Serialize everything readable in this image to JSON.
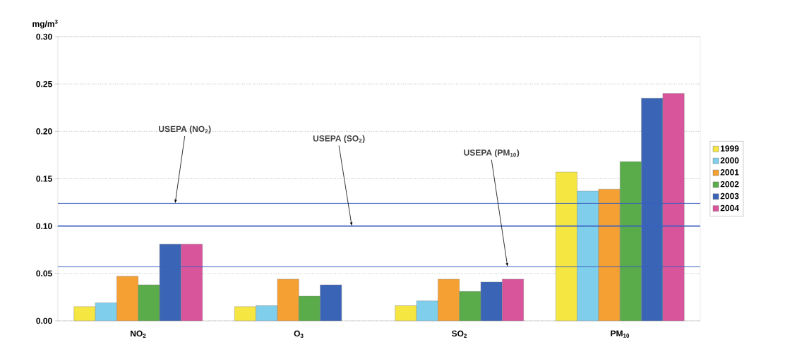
{
  "chart_data": {
    "type": "bar",
    "ylabel": "mg/m$^{3}$",
    "categories": [
      "NO$_{2}$",
      "O$_{3}$",
      "SO$_{2}$",
      "PM$_{10}$"
    ],
    "series": [
      {
        "name": "1999",
        "color": "#f5e642",
        "values": [
          0.015,
          0.015,
          0.016,
          0.157
        ]
      },
      {
        "name": "2000",
        "color": "#7fcfec",
        "values": [
          0.019,
          0.016,
          0.021,
          0.137
        ]
      },
      {
        "name": "2001",
        "color": "#f5a033",
        "values": [
          0.047,
          0.044,
          0.044,
          0.139
        ]
      },
      {
        "name": "2002",
        "color": "#5aab4a",
        "values": [
          0.038,
          0.026,
          0.031,
          0.168
        ]
      },
      {
        "name": "2003",
        "color": "#3a64b5",
        "values": [
          0.081,
          0.038,
          0.041,
          0.235
        ]
      },
      {
        "name": "2004",
        "color": "#d9559b",
        "values": [
          0.081,
          null,
          0.044,
          0.24
        ]
      }
    ],
    "ylim": [
      0,
      0.3
    ],
    "yticks": [
      {
        "value": 0,
        "label": "0.00"
      },
      {
        "value": 0.05,
        "label": "0.05"
      },
      {
        "value": 0.1,
        "label": "0.10"
      },
      {
        "value": 0.15,
        "label": "0.15"
      },
      {
        "value": 0.2,
        "label": "0.20"
      },
      {
        "value": 0.25,
        "label": "0.25"
      },
      {
        "value": 0.3,
        "label": "0.30"
      }
    ],
    "ref_lines": [
      {
        "axis": "y",
        "value": 0.124,
        "label": "USEPA (NO$_{2}$)",
        "color": "#3a5fc0"
      },
      {
        "axis": "y",
        "value": 0.1,
        "label": "USEPA (SO$_{2}$)",
        "color": "#3a5fc0"
      },
      {
        "axis": "y",
        "value": 0.057,
        "label": "USEPA (PM$_{10}$)",
        "color": "#3a5fc0"
      }
    ],
    "grid": "y",
    "legend": "right"
  }
}
